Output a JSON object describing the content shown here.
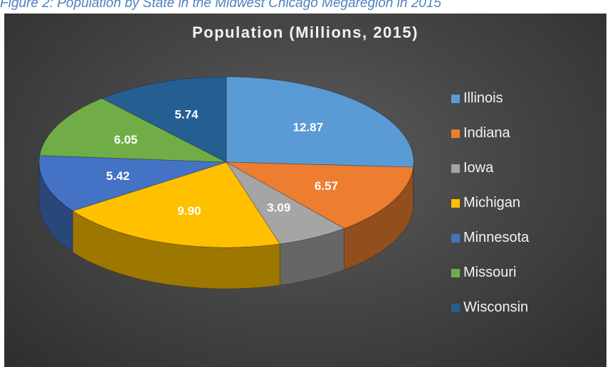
{
  "caption": "Figure 2: Population by State in the Midwest Chicago Megaregion in 2015",
  "chart_data": {
    "type": "pie",
    "title": "Population (Millions, 2015)",
    "categories": [
      "Illinois",
      "Indiana",
      "Iowa",
      "Michigan",
      "Minnesota",
      "Missouri",
      "Wisconsin"
    ],
    "values": [
      12.87,
      6.57,
      3.09,
      9.9,
      5.42,
      6.05,
      5.74
    ],
    "labels": [
      "12.87",
      "6.57",
      "3.09",
      "9.90",
      "5.42",
      "6.05",
      "5.74"
    ],
    "colors": [
      "#5b9bd5",
      "#ed7d31",
      "#a5a5a5",
      "#ffc000",
      "#4472c4",
      "#70ad47",
      "#255e91"
    ],
    "legend_position": "right",
    "style": "3d"
  },
  "legend": [
    {
      "label": "Illinois",
      "color": "#5b9bd5"
    },
    {
      "label": "Indiana",
      "color": "#ed7d31"
    },
    {
      "label": "Iowa",
      "color": "#a5a5a5"
    },
    {
      "label": "Michigan",
      "color": "#ffc000"
    },
    {
      "label": "Minnesota",
      "color": "#4472c4"
    },
    {
      "label": "Missouri",
      "color": "#70ad47"
    },
    {
      "label": "Wisconsin",
      "color": "#255e91"
    }
  ]
}
